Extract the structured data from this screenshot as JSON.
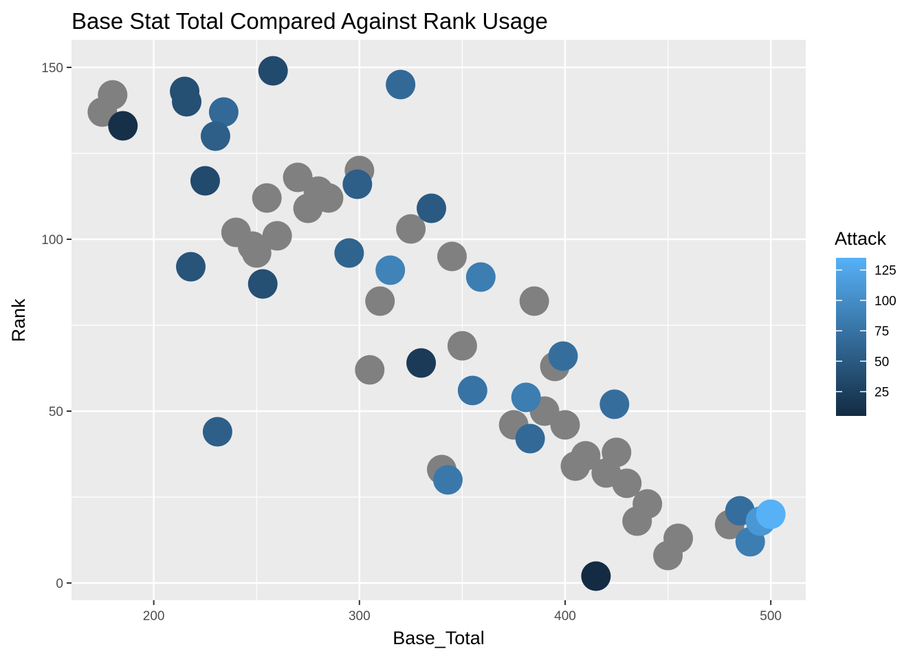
{
  "chart_data": {
    "type": "scatter",
    "title": "Base Stat Total Compared Against Rank Usage",
    "xlabel": "Base_Total",
    "ylabel": "Rank",
    "xlim": [
      160,
      517
    ],
    "ylim": [
      -5,
      158
    ],
    "x_ticks": [
      200,
      300,
      400,
      500
    ],
    "y_ticks": [
      0,
      50,
      100,
      150
    ],
    "x_tick_labels": [
      "200",
      "300",
      "400",
      "500"
    ],
    "y_tick_labels": [
      "0",
      "50",
      "100",
      "150"
    ],
    "grid": true,
    "background": "#EBEBEB",
    "na_color": "#808080",
    "legend": {
      "title": "Attack",
      "placement": "right",
      "colormap": "gradient",
      "low_color": "#132B43",
      "high_color": "#56B1F7",
      "range": [
        5,
        135
      ],
      "ticks": [
        25,
        50,
        75,
        100,
        125
      ],
      "tick_labels": [
        "25",
        "50",
        "75",
        "100",
        "125"
      ]
    },
    "points": [
      {
        "x": 175,
        "y": 137,
        "attack": null
      },
      {
        "x": 180,
        "y": 142,
        "attack": null
      },
      {
        "x": 250,
        "y": 96,
        "attack": null
      },
      {
        "x": 240,
        "y": 102,
        "attack": null
      },
      {
        "x": 248,
        "y": 98,
        "attack": null
      },
      {
        "x": 260,
        "y": 101,
        "attack": null
      },
      {
        "x": 255,
        "y": 112,
        "attack": null
      },
      {
        "x": 270,
        "y": 118,
        "attack": null
      },
      {
        "x": 275,
        "y": 109,
        "attack": null
      },
      {
        "x": 280,
        "y": 114,
        "attack": null
      },
      {
        "x": 285,
        "y": 112,
        "attack": null
      },
      {
        "x": 300,
        "y": 120,
        "attack": null
      },
      {
        "x": 325,
        "y": 103,
        "attack": null
      },
      {
        "x": 345,
        "y": 95,
        "attack": null
      },
      {
        "x": 310,
        "y": 82,
        "attack": null
      },
      {
        "x": 305,
        "y": 62,
        "attack": null
      },
      {
        "x": 350,
        "y": 69,
        "attack": null
      },
      {
        "x": 385,
        "y": 82,
        "attack": null
      },
      {
        "x": 395,
        "y": 63,
        "attack": null
      },
      {
        "x": 340,
        "y": 33,
        "attack": null
      },
      {
        "x": 375,
        "y": 46,
        "attack": null
      },
      {
        "x": 390,
        "y": 50,
        "attack": null
      },
      {
        "x": 400,
        "y": 46,
        "attack": null
      },
      {
        "x": 405,
        "y": 34,
        "attack": null
      },
      {
        "x": 410,
        "y": 37,
        "attack": null
      },
      {
        "x": 420,
        "y": 32,
        "attack": null
      },
      {
        "x": 425,
        "y": 38,
        "attack": null
      },
      {
        "x": 430,
        "y": 29,
        "attack": null
      },
      {
        "x": 440,
        "y": 23,
        "attack": null
      },
      {
        "x": 435,
        "y": 18,
        "attack": null
      },
      {
        "x": 450,
        "y": 8,
        "attack": null
      },
      {
        "x": 455,
        "y": 13,
        "attack": null
      },
      {
        "x": 480,
        "y": 17,
        "attack": null
      },
      {
        "x": 185,
        "y": 133,
        "attack": 10
      },
      {
        "x": 215,
        "y": 143,
        "attack": 40
      },
      {
        "x": 216,
        "y": 140,
        "attack": 40
      },
      {
        "x": 234,
        "y": 137,
        "attack": 65
      },
      {
        "x": 230,
        "y": 130,
        "attack": 55
      },
      {
        "x": 258,
        "y": 149,
        "attack": 35
      },
      {
        "x": 225,
        "y": 117,
        "attack": 35
      },
      {
        "x": 218,
        "y": 92,
        "attack": 45
      },
      {
        "x": 253,
        "y": 87,
        "attack": 40
      },
      {
        "x": 231,
        "y": 44,
        "attack": 55
      },
      {
        "x": 320,
        "y": 145,
        "attack": 65
      },
      {
        "x": 299,
        "y": 116,
        "attack": 55
      },
      {
        "x": 295,
        "y": 96,
        "attack": 60
      },
      {
        "x": 335,
        "y": 109,
        "attack": 50
      },
      {
        "x": 315,
        "y": 91,
        "attack": 90
      },
      {
        "x": 330,
        "y": 64,
        "attack": 20
      },
      {
        "x": 359,
        "y": 89,
        "attack": 85
      },
      {
        "x": 355,
        "y": 56,
        "attack": 75
      },
      {
        "x": 343,
        "y": 30,
        "attack": 80
      },
      {
        "x": 381,
        "y": 54,
        "attack": 85
      },
      {
        "x": 383,
        "y": 42,
        "attack": 65
      },
      {
        "x": 399,
        "y": 66,
        "attack": 70
      },
      {
        "x": 424,
        "y": 52,
        "attack": 70
      },
      {
        "x": 415,
        "y": 2,
        "attack": 5
      },
      {
        "x": 485,
        "y": 21,
        "attack": 70
      },
      {
        "x": 490,
        "y": 12,
        "attack": 85
      },
      {
        "x": 495,
        "y": 18,
        "attack": 110
      },
      {
        "x": 500,
        "y": 20,
        "attack": 135
      }
    ]
  }
}
